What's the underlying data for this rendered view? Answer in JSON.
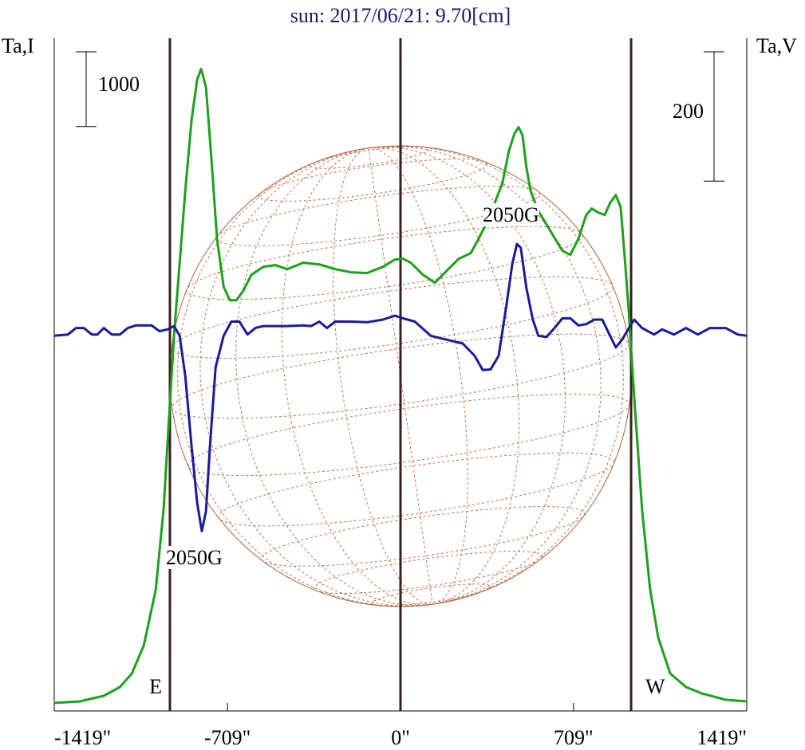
{
  "chart_data": {
    "type": "line",
    "title": "sun: 2017/06/21: 9.70[cm]",
    "y_label": "Ta,I",
    "y2_label": "Ta,V",
    "y_scale_bar": 1000,
    "y2_scale_bar": 200,
    "xlim": [
      -1419,
      1419
    ],
    "xticks": [
      {
        "value": -1419,
        "label": "-1419\""
      },
      {
        "value": -709,
        "label": "-709\""
      },
      {
        "value": 0,
        "label": "0\""
      },
      {
        "value": 709,
        "label": "709\""
      },
      {
        "value": 1419,
        "label": "1419\""
      }
    ],
    "ylim": [
      0,
      9000
    ],
    "y2lim": [
      -580,
      460
    ],
    "vlines": [
      {
        "x": -945,
        "label": "E"
      },
      {
        "x": 0
      },
      {
        "x": 945,
        "label": "W"
      }
    ],
    "annotations": [
      "2050G",
      "2050G"
    ],
    "series": [
      {
        "color": "#1ea01e",
        "x": [
          -1419,
          -1314,
          -1216,
          -1150,
          -1101,
          -1052,
          -1003,
          -971,
          -948,
          -928,
          -905,
          -882,
          -856,
          -833,
          -817,
          -797,
          -775,
          -752,
          -725,
          -699,
          -673,
          -644,
          -611,
          -562,
          -513,
          -464,
          -399,
          -333,
          -268,
          -203,
          -137,
          -72,
          -23,
          10,
          42,
          92,
          141,
          190,
          239,
          288,
          320,
          353,
          386,
          418,
          444,
          467,
          484,
          500,
          516,
          533,
          565,
          614,
          663,
          696,
          729,
          761,
          784,
          810,
          837,
          859,
          882,
          902,
          918,
          935,
          958,
          990,
          1023,
          1056,
          1105,
          1170,
          1235,
          1333,
          1419
        ],
        "values": [
          107,
          128,
          203,
          320,
          501,
          875,
          1622,
          2689,
          3969,
          5036,
          5997,
          6957,
          7917,
          8451,
          8589,
          8344,
          7384,
          6317,
          5676,
          5495,
          5495,
          5623,
          5836,
          5943,
          5965,
          5911,
          5997,
          5975,
          5911,
          5869,
          5858,
          5943,
          6039,
          6050,
          5997,
          5836,
          5730,
          5890,
          6050,
          6125,
          6317,
          6530,
          6797,
          7064,
          7490,
          7725,
          7810,
          7704,
          7277,
          6957,
          6690,
          6423,
          6157,
          6103,
          6317,
          6637,
          6722,
          6669,
          6637,
          6797,
          6903,
          6743,
          6103,
          5356,
          4183,
          2689,
          1622,
          982,
          501,
          320,
          235,
          149,
          128
        ]
      },
      {
        "color": "#1a1a9a",
        "axis": "y2",
        "x": [
          -1419,
          -1363,
          -1330,
          -1297,
          -1265,
          -1242,
          -1216,
          -1183,
          -1150,
          -1118,
          -1085,
          -1020,
          -987,
          -954,
          -928,
          -905,
          -882,
          -856,
          -833,
          -814,
          -797,
          -781,
          -758,
          -725,
          -693,
          -660,
          -627,
          -595,
          -562,
          -464,
          -399,
          -366,
          -333,
          -301,
          -268,
          -203,
          -137,
          -72,
          -23,
          10,
          59,
          124,
          190,
          255,
          304,
          337,
          369,
          402,
          435,
          458,
          477,
          493,
          516,
          542,
          565,
          598,
          631,
          663,
          696,
          729,
          761,
          794,
          827,
          859,
          882,
          908,
          941,
          958,
          990,
          1039,
          1072,
          1121,
          1170,
          1219,
          1268,
          1333,
          1382,
          1419
        ],
        "values": [
          0,
          2,
          12,
          12,
          2,
          2,
          12,
          2,
          2,
          12,
          16,
          16,
          7,
          10,
          15,
          0,
          -62,
          -172,
          -259,
          -302,
          -271,
          -172,
          -49,
          0,
          22,
          22,
          2,
          12,
          15,
          15,
          16,
          15,
          22,
          12,
          22,
          22,
          21,
          25,
          31,
          27,
          22,
          0,
          -6,
          -12,
          -31,
          -53,
          -52,
          -31,
          49,
          111,
          142,
          136,
          74,
          25,
          0,
          -2,
          12,
          27,
          27,
          16,
          18,
          25,
          25,
          0,
          -18,
          -6,
          15,
          25,
          12,
          2,
          10,
          2,
          12,
          2,
          12,
          12,
          2,
          0
        ]
      }
    ]
  }
}
